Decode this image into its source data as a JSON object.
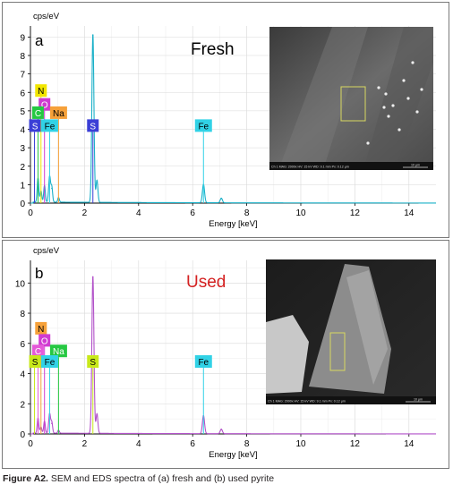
{
  "caption": {
    "label": "Figure A2.",
    "text": "SEM and EDS spectra of (a) fresh and (b) used pyrite"
  },
  "chart_data": [
    {
      "type": "line",
      "panel_letter": "a",
      "condition_label": "Fresh",
      "condition_color": "#000000",
      "ylabel": "cps/eV",
      "xlabel": "Energy [keV]",
      "xlim": [
        0,
        15
      ],
      "ylim": [
        0,
        9.6
      ],
      "xticks": [
        0,
        2,
        4,
        6,
        8,
        10,
        12,
        14
      ],
      "yticks": [
        0,
        1,
        2,
        3,
        4,
        5,
        6,
        7,
        8,
        9
      ],
      "grid": true,
      "spectrum_color": "#1ab0c8",
      "peaks": [
        {
          "x": 0.28,
          "y": 1.3,
          "w": 0.03
        },
        {
          "x": 0.39,
          "y": 0.6,
          "w": 0.03
        },
        {
          "x": 0.52,
          "y": 0.9,
          "w": 0.03
        },
        {
          "x": 0.71,
          "y": 1.4,
          "w": 0.035
        },
        {
          "x": 0.79,
          "y": 0.8,
          "w": 0.03
        },
        {
          "x": 1.04,
          "y": 0.25,
          "w": 0.03
        },
        {
          "x": 2.31,
          "y": 9.1,
          "w": 0.038
        },
        {
          "x": 2.46,
          "y": 1.2,
          "w": 0.035
        },
        {
          "x": 6.4,
          "y": 1.0,
          "w": 0.04
        },
        {
          "x": 7.06,
          "y": 0.25,
          "w": 0.04
        }
      ],
      "element_markers": [
        {
          "symbol": "N",
          "energy": 0.39,
          "label_y": 6.1,
          "color": "#f2e600"
        },
        {
          "symbol": "O",
          "energy": 0.52,
          "label_y": 5.35,
          "color": "#d03bd1"
        },
        {
          "symbol": "Na",
          "energy": 1.04,
          "label_y": 4.9,
          "color": "#f6a13a"
        },
        {
          "symbol": "C",
          "energy": 0.28,
          "label_y": 4.9,
          "color": "#26c842"
        },
        {
          "symbol": "S",
          "energy": 0.15,
          "label_y": 4.2,
          "color": "#3b3fd6"
        },
        {
          "symbol": "Fe",
          "energy": 0.71,
          "label_y": 4.2,
          "color": "#31d2e6"
        },
        {
          "symbol": "S",
          "energy": 2.31,
          "label_y": 4.2,
          "color": "#3b3fd6"
        },
        {
          "symbol": "Fe",
          "energy": 6.4,
          "label_y": 4.2,
          "color": "#31d2e6"
        }
      ]
    },
    {
      "type": "line",
      "panel_letter": "b",
      "condition_label": "Used",
      "condition_color": "#d42020",
      "ylabel": "cps/eV",
      "xlabel": "Energy [keV]",
      "xlim": [
        0,
        15
      ],
      "ylim": [
        0,
        11.5
      ],
      "xticks": [
        0,
        2,
        4,
        6,
        8,
        10,
        12,
        14
      ],
      "yticks": [
        0,
        2,
        4,
        6,
        8,
        10
      ],
      "grid": true,
      "spectrum_color": "#b252c9",
      "peaks": [
        {
          "x": 0.28,
          "y": 1.0,
          "w": 0.03
        },
        {
          "x": 0.39,
          "y": 0.4,
          "w": 0.03
        },
        {
          "x": 0.52,
          "y": 0.8,
          "w": 0.03
        },
        {
          "x": 0.71,
          "y": 1.3,
          "w": 0.035
        },
        {
          "x": 0.79,
          "y": 0.7,
          "w": 0.03
        },
        {
          "x": 1.04,
          "y": 0.2,
          "w": 0.03
        },
        {
          "x": 2.31,
          "y": 10.4,
          "w": 0.038
        },
        {
          "x": 2.46,
          "y": 1.3,
          "w": 0.035
        },
        {
          "x": 6.4,
          "y": 1.2,
          "w": 0.04
        },
        {
          "x": 7.06,
          "y": 0.3,
          "w": 0.04
        }
      ],
      "element_markers": [
        {
          "symbol": "N",
          "energy": 0.39,
          "label_y": 7.0,
          "color": "#f6a13a"
        },
        {
          "symbol": "O",
          "energy": 0.52,
          "label_y": 6.2,
          "color": "#d03bd1"
        },
        {
          "symbol": "C",
          "energy": 0.28,
          "label_y": 5.5,
          "color": "#e55ad8"
        },
        {
          "symbol": "Na",
          "energy": 1.04,
          "label_y": 5.5,
          "color": "#26c842"
        },
        {
          "symbol": "S",
          "energy": 0.15,
          "label_y": 4.8,
          "color": "#c8e81a"
        },
        {
          "symbol": "Fe",
          "energy": 0.71,
          "label_y": 4.8,
          "color": "#31d2e6"
        },
        {
          "symbol": "S",
          "energy": 2.31,
          "label_y": 4.8,
          "color": "#c8e81a"
        },
        {
          "symbol": "Fe",
          "energy": 6.4,
          "label_y": 4.8,
          "color": "#31d2e6"
        }
      ]
    }
  ],
  "sem_images": [
    {
      "info_text": "Ch 1  MAG: 2000x  HV: 15 kV  WD: 9.1 mm  Px: 0.12 µm",
      "scale_bar": "10 µm"
    },
    {
      "info_text": "Ch 1  MAG: 2000x  HV: 15 kV  WD: 9.1 mm  Px: 0.12 µm",
      "scale_bar": "10 µm"
    }
  ]
}
